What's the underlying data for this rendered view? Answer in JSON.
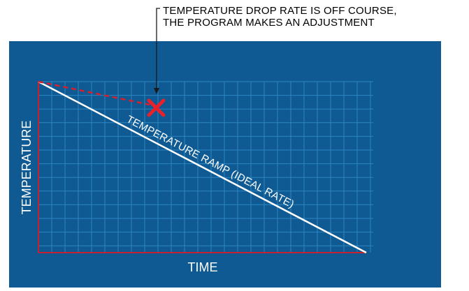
{
  "annotation": {
    "line1": "TEMPERATURE DROP RATE IS OFF COURSE,",
    "line2": "THE PROGRAM MAKES AN ADJUSTMENT"
  },
  "diagram": {
    "y_axis_label": "TEMPERATURE",
    "x_axis_label": "TIME",
    "ramp_label": "TEMPERATURE RAMP (IDEAL RATE)"
  },
  "colors": {
    "panel_background": "#0f5a92",
    "grid_lines": "#2b86c2",
    "axis": "#c8202f",
    "ramp_line": "#ffffff",
    "deviation_line": "#d5202e",
    "marker": "#e8202a",
    "text_light": "#ffffff",
    "text_dark": "#000000"
  },
  "icons": {
    "deviation_marker": "x-mark-icon",
    "callout_arrow": "arrow-down-icon"
  }
}
